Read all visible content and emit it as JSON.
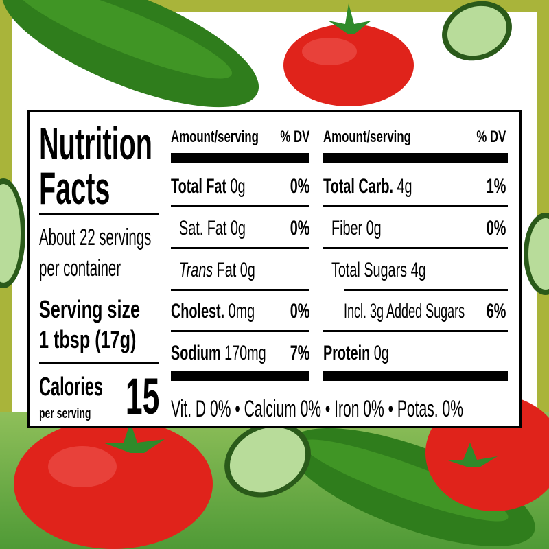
{
  "label": {
    "title_line1": "Nutrition",
    "title_line2": "Facts",
    "servings_line1": "About 22 servings",
    "servings_line2": "per container",
    "serving_size_label": "Serving size",
    "serving_size_value": "1 tbsp (17g)",
    "calories_label": "Calories",
    "calories_sub": "per serving",
    "calories_value": "15",
    "left_table": {
      "header_amount": "Amount/serving",
      "header_dv": "% DV",
      "rows": [
        {
          "name": "Total Fat",
          "amount": "0g",
          "dv": "0%"
        },
        {
          "name": "Sat. Fat",
          "amount": "0g",
          "dv": "0%"
        },
        {
          "name_italic": "Trans",
          "name": "Fat",
          "amount": "0g",
          "dv": ""
        },
        {
          "name": "Cholest.",
          "amount": "0mg",
          "dv": "0%"
        },
        {
          "name": "Sodium",
          "amount": "170mg",
          "dv": "7%"
        }
      ]
    },
    "right_table": {
      "header_amount": "Amount/serving",
      "header_dv": "% DV",
      "rows": [
        {
          "name": "Total Carb.",
          "amount": "4g",
          "dv": "1%"
        },
        {
          "name": "Fiber",
          "amount": "0g",
          "dv": "0%"
        },
        {
          "name": "Total Sugars",
          "amount": "4g",
          "dv": ""
        },
        {
          "name": "Incl. 3g Added Sugars",
          "amount": "",
          "dv": "6%"
        },
        {
          "name": "Protein",
          "amount": "0g",
          "dv": ""
        }
      ]
    },
    "vitamins": "Vit. D 0% • Calcium 0% • Iron 0% • Potas. 0%"
  },
  "colors": {
    "border": "#a9b43a",
    "tomato": "#e0231b",
    "cucumber": "#2f7d1c"
  }
}
